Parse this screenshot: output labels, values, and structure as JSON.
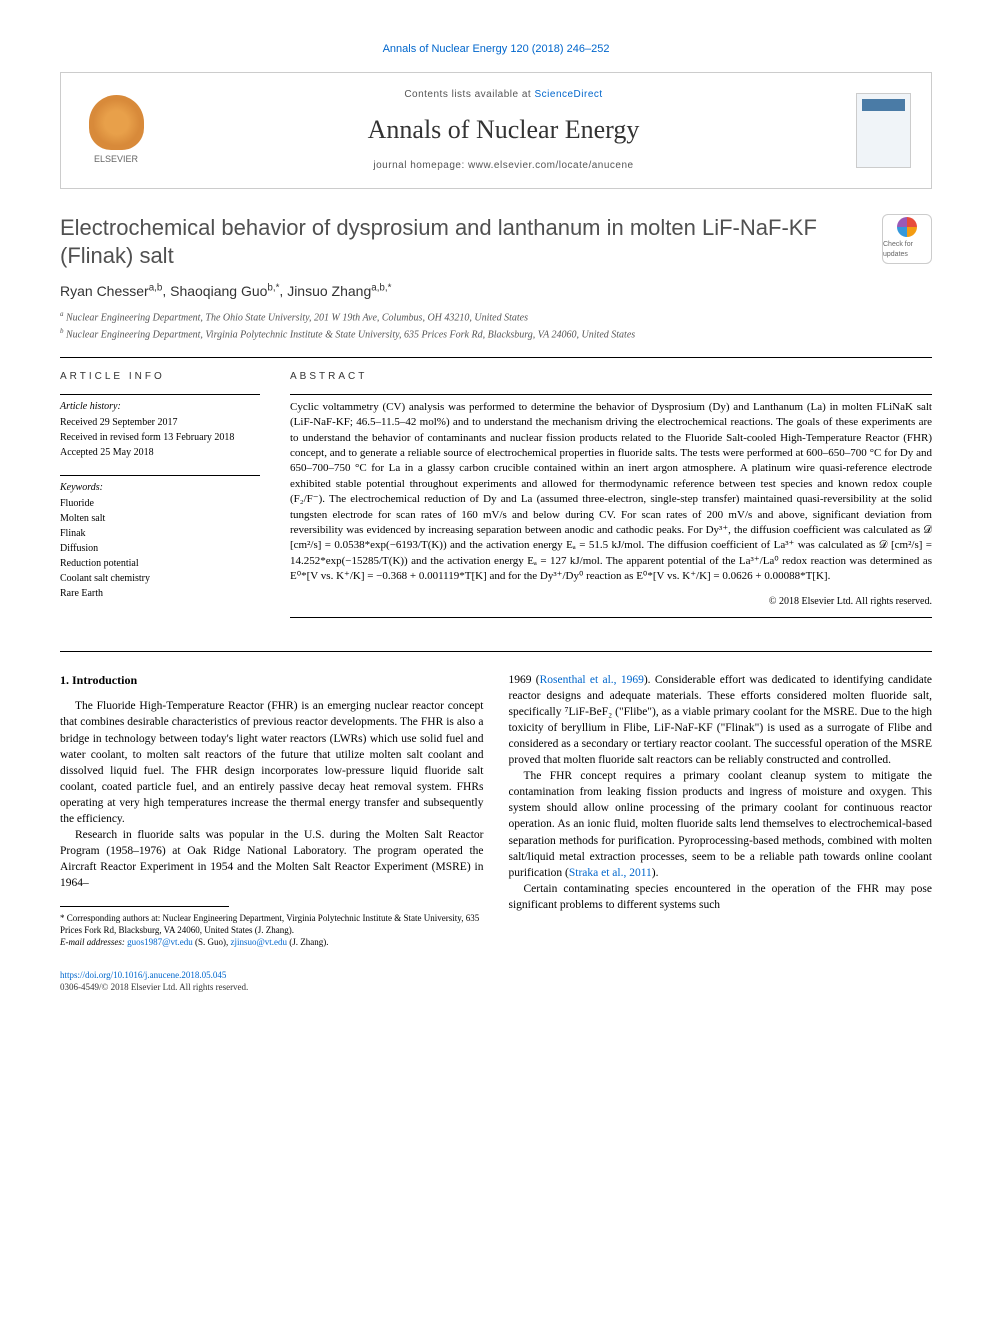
{
  "header": {
    "journal_ref": "Annals of Nuclear Energy 120 (2018) 246–252",
    "contents_available": "Contents lists available at ",
    "sciencedirect": "ScienceDirect",
    "journal_title": "Annals of Nuclear Energy",
    "homepage_prefix": "journal homepage: ",
    "homepage_url": "www.elsevier.com/locate/anucene",
    "elsevier": "ELSEVIER"
  },
  "title": "Electrochemical behavior of dysprosium and lanthanum in molten LiF-NaF-KF (Flinak) salt",
  "check_updates": "Check for updates",
  "authors": [
    {
      "name": "Ryan Chesser",
      "sup": "a,b"
    },
    {
      "name": "Shaoqiang Guo",
      "sup": "b,*"
    },
    {
      "name": "Jinsuo Zhang",
      "sup": "a,b,*"
    }
  ],
  "affiliations": [
    {
      "sup": "a",
      "text": "Nuclear Engineering Department, The Ohio State University, 201 W 19th Ave, Columbus, OH 43210, United States"
    },
    {
      "sup": "b",
      "text": "Nuclear Engineering Department, Virginia Polytechnic Institute & State University, 635 Prices Fork Rd, Blacksburg, VA 24060, United States"
    }
  ],
  "article_info": {
    "header": "ARTICLE INFO",
    "history_label": "Article history:",
    "history": [
      "Received 29 September 2017",
      "Received in revised form 13 February 2018",
      "Accepted 25 May 2018"
    ],
    "keywords_label": "Keywords:",
    "keywords": [
      "Fluoride",
      "Molten salt",
      "Flinak",
      "Diffusion",
      "Reduction potential",
      "Coolant salt chemistry",
      "Rare Earth"
    ]
  },
  "abstract": {
    "header": "ABSTRACT",
    "text": "Cyclic voltammetry (CV) analysis was performed to determine the behavior of Dysprosium (Dy) and Lanthanum (La) in molten FLiNaK salt (LiF-NaF-KF; 46.5–11.5–42 mol%) and to understand the mechanism driving the electrochemical reactions. The goals of these experiments are to understand the behavior of contaminants and nuclear fission products related to the Fluoride Salt-cooled High-Temperature Reactor (FHR) concept, and to generate a reliable source of electrochemical properties in fluoride salts. The tests were performed at 600–650–700 °C for Dy and 650–700–750 °C for La in a glassy carbon crucible contained within an inert argon atmosphere. A platinum wire quasi-reference electrode exhibited stable potential throughout experiments and allowed for thermodynamic reference between test species and known redox couple (F₂/F⁻). The electrochemical reduction of Dy and La (assumed three-electron, single-step transfer) maintained quasi-reversibility at the solid tungsten electrode for scan rates of 160 mV/s and below during CV. For scan rates of 200 mV/s and above, significant deviation from reversibility was evidenced by increasing separation between anodic and cathodic peaks. For Dy³⁺, the diffusion coefficient was calculated as 𝒟 [cm²/s] = 0.0538*exp(−6193/T(K)) and the activation energy Eₐ = 51.5 kJ/mol. The diffusion coefficient of La³⁺ was calculated as 𝒟 [cm²/s] = 14.252*exp(−15285/T(K)) and the activation energy Eₐ = 127 kJ/mol. The apparent potential of the La³⁺/La⁰ redox reaction was determined as E⁰*[V vs. K⁺/K] = −0.368 + 0.001119*T[K] and for the Dy³⁺/Dy⁰ reaction as E⁰*[V vs. K⁺/K] = 0.0626 + 0.00088*T[K].",
    "copyright": "© 2018 Elsevier Ltd. All rights reserved."
  },
  "body": {
    "section_title": "1. Introduction",
    "col1_p1": "The Fluoride High-Temperature Reactor (FHR) is an emerging nuclear reactor concept that combines desirable characteristics of previous reactor developments. The FHR is also a bridge in technology between today's light water reactors (LWRs) which use solid fuel and water coolant, to molten salt reactors of the future that utilize molten salt coolant and dissolved liquid fuel. The FHR design incorporates low-pressure liquid fluoride salt coolant, coated particle fuel, and an entirely passive decay heat removal system. FHRs operating at very high temperatures increase the thermal energy transfer and subsequently the efficiency.",
    "col1_p2": "Research in fluoride salts was popular in the U.S. during the Molten Salt Reactor Program (1958–1976) at Oak Ridge National Laboratory. The program operated the Aircraft Reactor Experiment in 1954 and the Molten Salt Reactor Experiment (MSRE) in 1964–",
    "col2_p1_a": "1969 (",
    "col2_p1_ref": "Rosenthal et al., 1969",
    "col2_p1_b": "). Considerable effort was dedicated to identifying candidate reactor designs and adequate materials. These efforts considered molten fluoride salt, specifically ⁷LiF-BeF₂ (\"Flibe\"), as a viable primary coolant for the MSRE. Due to the high toxicity of beryllium in Flibe, LiF-NaF-KF (\"Flinak\") is used as a surrogate of Flibe and considered as a secondary or tertiary reactor coolant. The successful operation of the MSRE proved that molten fluoride salt reactors can be reliably constructed and controlled.",
    "col2_p2_a": "The FHR concept requires a primary coolant cleanup system to mitigate the contamination from leaking fission products and ingress of moisture and oxygen. This system should allow online processing of the primary coolant for continuous reactor operation. As an ionic fluid, molten fluoride salts lend themselves to electrochemical-based separation methods for purification. Pyroprocessing-based methods, combined with molten salt/liquid metal extraction processes, seem to be a reliable path towards online coolant purification (",
    "col2_p2_ref": "Straka et al., 2011",
    "col2_p2_b": ").",
    "col2_p3": "Certain contaminating species encountered in the operation of the FHR may pose significant problems to different systems such"
  },
  "footnotes": {
    "corresponding": "* Corresponding authors at: Nuclear Engineering Department, Virginia Polytechnic Institute & State University, 635 Prices Fork Rd, Blacksburg, VA 24060, United States (J. Zhang).",
    "email_label": "E-mail addresses: ",
    "email1": "guos1987@vt.edu",
    "email1_who": " (S. Guo), ",
    "email2": "zjinsuo@vt.edu",
    "email2_who": " (J. Zhang)."
  },
  "doi": {
    "url": "https://doi.org/10.1016/j.anucene.2018.05.045",
    "issn": "0306-4549/© 2018 Elsevier Ltd. All rights reserved."
  },
  "colors": {
    "link": "#0066cc",
    "text": "#000000",
    "gray": "#555555",
    "title_gray": "#505050"
  }
}
